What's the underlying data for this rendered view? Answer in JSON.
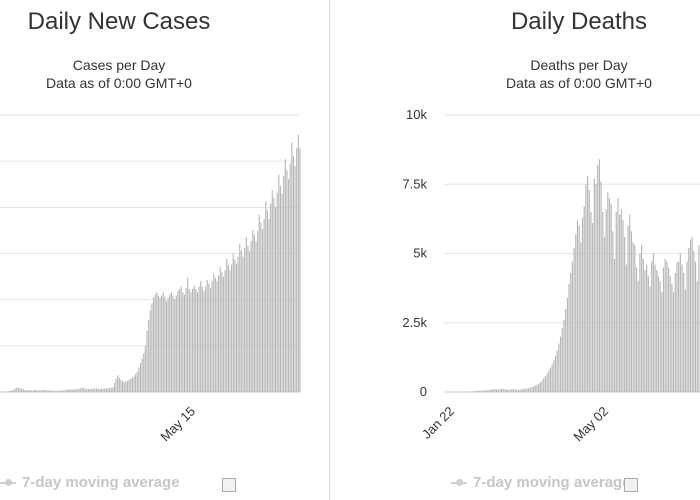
{
  "chart_data": [
    {
      "type": "bar",
      "title": "Daily New Cases",
      "subtitle_lines": [
        "Cases per Day",
        "Data as of 0:00 GMT+0"
      ],
      "x_tick_labels": [
        "May 15"
      ],
      "legend": "7-day moving average",
      "bar_color": "#b7b7b7",
      "grid": true,
      "values": [
        10,
        20,
        30,
        40,
        60,
        80,
        100,
        150,
        200,
        300,
        400,
        380,
        350,
        300,
        250,
        200,
        180,
        170,
        160,
        150,
        160,
        180,
        170,
        150,
        140,
        160,
        180,
        200,
        170,
        150,
        140,
        130,
        120,
        110,
        100,
        110,
        120,
        130,
        150,
        160,
        180,
        200,
        250,
        220,
        200,
        230,
        250,
        280,
        300,
        320,
        400,
        350,
        300,
        280,
        260,
        270,
        290,
        300,
        320,
        330,
        300,
        280,
        270,
        300,
        310,
        320,
        340,
        350,
        380,
        400,
        800,
        1200,
        1500,
        1300,
        1100,
        1000,
        900,
        950,
        1000,
        1100,
        1200,
        1300,
        1400,
        1600,
        1800,
        2200,
        2600,
        3000,
        3500,
        4200,
        5500,
        6500,
        7400,
        8000,
        8500,
        8800,
        9000,
        8700,
        8500,
        8700,
        9000,
        8600,
        8200,
        8500,
        8800,
        9000,
        8700,
        8400,
        8700,
        9100,
        9300,
        9500,
        9000,
        8800,
        9400,
        10300,
        9300,
        9000,
        9300,
        9600,
        9300,
        9000,
        9500,
        10000,
        9500,
        9100,
        9500,
        10100,
        9800,
        9400,
        10000,
        10700,
        10300,
        10000,
        10500,
        11300,
        10800,
        10400,
        11000,
        12000,
        11500,
        11000,
        11500,
        12500,
        12000,
        11600,
        12200,
        13400,
        12800,
        12200,
        13000,
        14000,
        13200,
        12700,
        13600,
        14600,
        14200,
        13600,
        14500,
        16000,
        15300,
        14700,
        15600,
        17200,
        16400,
        15600,
        17000,
        18200,
        17500,
        16700,
        18000,
        19600,
        18600,
        17900,
        19500,
        21000,
        20000,
        19200,
        20600,
        22500,
        21300,
        20400,
        22000,
        23200,
        22000
      ],
      "value_max": 25000
    },
    {
      "type": "bar",
      "title": "Daily Deaths",
      "subtitle_lines": [
        "Deaths per Day",
        "Data as of 0:00 GMT+0"
      ],
      "y_ticks": [
        "0",
        "2.5k",
        "5k",
        "7.5k",
        "10k"
      ],
      "ylim": [
        0,
        10000
      ],
      "x_tick_labels": [
        "Jan 22",
        "May 02"
      ],
      "legend": "7-day moving average",
      "bar_color": "#b7b7b7",
      "grid": true,
      "values": [
        0,
        0,
        0,
        0,
        1,
        1,
        2,
        2,
        3,
        5,
        8,
        10,
        15,
        18,
        20,
        25,
        30,
        35,
        40,
        45,
        50,
        55,
        60,
        65,
        70,
        80,
        90,
        100,
        110,
        100,
        90,
        100,
        110,
        120,
        100,
        90,
        80,
        90,
        100,
        110,
        100,
        90,
        80,
        90,
        100,
        110,
        120,
        130,
        140,
        160,
        180,
        200,
        230,
        260,
        300,
        350,
        420,
        500,
        580,
        660,
        760,
        880,
        1000,
        1150,
        1300,
        1500,
        1750,
        2000,
        2300,
        2600,
        3000,
        3400,
        3900,
        4300,
        4700,
        5200,
        5700,
        6200,
        6000,
        5400,
        6300,
        6700,
        7500,
        7800,
        7300,
        6500,
        6100,
        7700,
        7500,
        8200,
        8400,
        7600,
        6500,
        5600,
        6600,
        7200,
        7000,
        6800,
        5800,
        4800,
        6500,
        7000,
        6400,
        6600,
        6200,
        5600,
        4600,
        6000,
        6400,
        5800,
        5400,
        5300,
        4500,
        4000,
        5000,
        5300,
        4800,
        4400,
        4600,
        4200,
        3800,
        4700,
        5000,
        4600,
        4400,
        4200,
        4000,
        3600,
        4500,
        4800,
        4700,
        4500,
        4200,
        3900,
        3600,
        4300,
        4700,
        4700,
        5000,
        4600,
        4300,
        3700,
        4700,
        5200,
        5500,
        5600,
        5100,
        4700,
        4000,
        5300
      ]
    }
  ]
}
